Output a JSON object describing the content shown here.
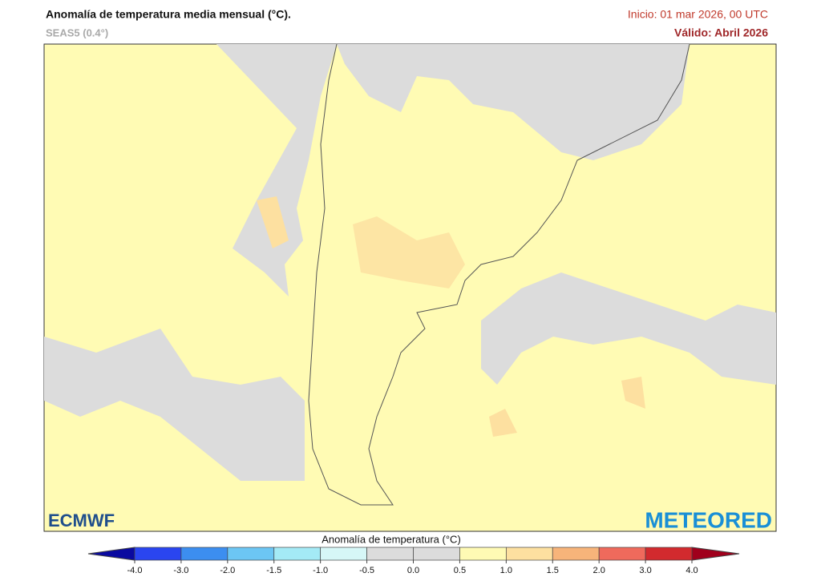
{
  "header": {
    "title": "Anomalía de temperatura media mensual (°C).",
    "subtitle": "SEAS5 (0.4°)",
    "init": "Inicio: 01 mar 2026, 00 UTC",
    "valid": "Válido: Abril 2026"
  },
  "logos": {
    "left": "ECMWF",
    "right": "METEORED"
  },
  "colorbar": {
    "title": "Anomalía de temperatura (°C)",
    "ticks": [
      {
        "value": -4,
        "label": "-4.0"
      },
      {
        "value": -3,
        "label": "-3.0"
      },
      {
        "value": -2,
        "label": "-2.0"
      },
      {
        "value": -1.5,
        "label": "-1.5"
      },
      {
        "value": -1,
        "label": "-1.0"
      },
      {
        "value": -0.5,
        "label": "-0.5"
      },
      {
        "value": 0,
        "label": "0.0"
      },
      {
        "value": 0.5,
        "label": "0.5"
      },
      {
        "value": 1,
        "label": "1.0"
      },
      {
        "value": 1.5,
        "label": "1.5"
      },
      {
        "value": 2,
        "label": "2.0"
      },
      {
        "value": 3,
        "label": "3.0"
      },
      {
        "value": 4,
        "label": "4.0"
      }
    ],
    "colors": [
      "#2a45f0",
      "#3c8ef0",
      "#6cc6f4",
      "#a4eaf6",
      "#d6f7f7",
      "#dcdcdc",
      "#dcdcdc",
      "#fffab4",
      "#fde0a0",
      "#f7b47a",
      "#ef6a5c",
      "#d22a2e"
    ],
    "under_color": "#0a0aa0",
    "over_color": "#a0001c"
  }
}
